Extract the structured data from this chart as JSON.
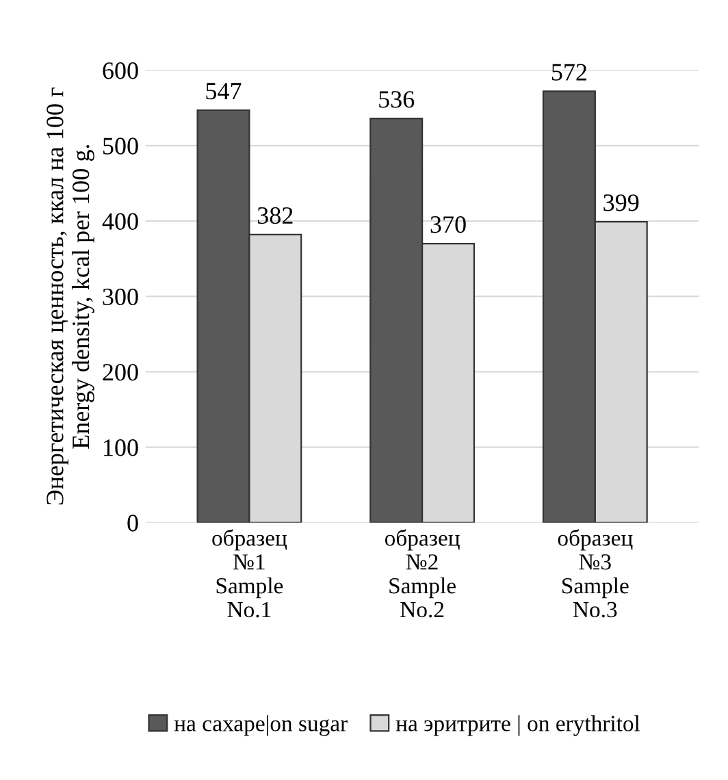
{
  "chart_data": {
    "type": "bar",
    "ylabel": "Энергетическая ценность, ккал на 100 г\nEnergy density, kcal per 100 g.",
    "categories": [
      "образец\n№1\nSample\nNo.1",
      "образец\n№2\nSample\nNo.2",
      "образец\n№3\nSample\nNo.3"
    ],
    "series": [
      {
        "name": "на сахаре|on sugar",
        "color": "#595959",
        "values": [
          547,
          536,
          572
        ]
      },
      {
        "name": "на эритрите | on erythritol",
        "color": "#d9d9d9",
        "values": [
          382,
          370,
          399
        ]
      }
    ],
    "ylim": [
      0,
      600
    ],
    "yticks": [
      0,
      100,
      200,
      300,
      400,
      500,
      600
    ],
    "grid": "y",
    "legend": "bottom",
    "data_labels": true
  }
}
